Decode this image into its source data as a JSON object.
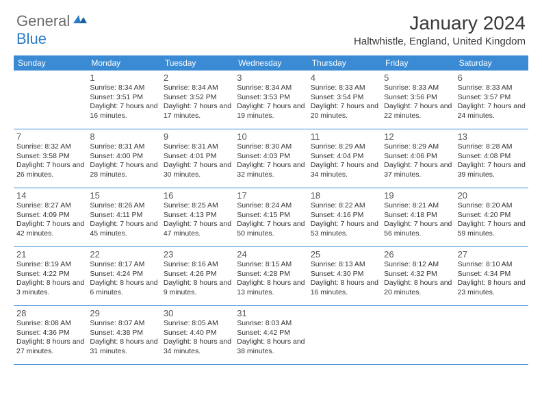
{
  "brand": {
    "part1": "General",
    "part2": "Blue"
  },
  "title": "January 2024",
  "location": "Haltwhistle, England, United Kingdom",
  "colors": {
    "header_bg": "#3b8bd4",
    "header_text": "#ffffff",
    "brand_gray": "#6b6b6b",
    "brand_blue": "#2a7cc7",
    "border": "#3b8bd4",
    "text": "#333333"
  },
  "weekdays": [
    "Sunday",
    "Monday",
    "Tuesday",
    "Wednesday",
    "Thursday",
    "Friday",
    "Saturday"
  ],
  "weeks": [
    [
      {
        "num": "",
        "sunrise": "",
        "sunset": "",
        "daylight": ""
      },
      {
        "num": "1",
        "sunrise": "Sunrise: 8:34 AM",
        "sunset": "Sunset: 3:51 PM",
        "daylight": "Daylight: 7 hours and 16 minutes."
      },
      {
        "num": "2",
        "sunrise": "Sunrise: 8:34 AM",
        "sunset": "Sunset: 3:52 PM",
        "daylight": "Daylight: 7 hours and 17 minutes."
      },
      {
        "num": "3",
        "sunrise": "Sunrise: 8:34 AM",
        "sunset": "Sunset: 3:53 PM",
        "daylight": "Daylight: 7 hours and 19 minutes."
      },
      {
        "num": "4",
        "sunrise": "Sunrise: 8:33 AM",
        "sunset": "Sunset: 3:54 PM",
        "daylight": "Daylight: 7 hours and 20 minutes."
      },
      {
        "num": "5",
        "sunrise": "Sunrise: 8:33 AM",
        "sunset": "Sunset: 3:56 PM",
        "daylight": "Daylight: 7 hours and 22 minutes."
      },
      {
        "num": "6",
        "sunrise": "Sunrise: 8:33 AM",
        "sunset": "Sunset: 3:57 PM",
        "daylight": "Daylight: 7 hours and 24 minutes."
      }
    ],
    [
      {
        "num": "7",
        "sunrise": "Sunrise: 8:32 AM",
        "sunset": "Sunset: 3:58 PM",
        "daylight": "Daylight: 7 hours and 26 minutes."
      },
      {
        "num": "8",
        "sunrise": "Sunrise: 8:31 AM",
        "sunset": "Sunset: 4:00 PM",
        "daylight": "Daylight: 7 hours and 28 minutes."
      },
      {
        "num": "9",
        "sunrise": "Sunrise: 8:31 AM",
        "sunset": "Sunset: 4:01 PM",
        "daylight": "Daylight: 7 hours and 30 minutes."
      },
      {
        "num": "10",
        "sunrise": "Sunrise: 8:30 AM",
        "sunset": "Sunset: 4:03 PM",
        "daylight": "Daylight: 7 hours and 32 minutes."
      },
      {
        "num": "11",
        "sunrise": "Sunrise: 8:29 AM",
        "sunset": "Sunset: 4:04 PM",
        "daylight": "Daylight: 7 hours and 34 minutes."
      },
      {
        "num": "12",
        "sunrise": "Sunrise: 8:29 AM",
        "sunset": "Sunset: 4:06 PM",
        "daylight": "Daylight: 7 hours and 37 minutes."
      },
      {
        "num": "13",
        "sunrise": "Sunrise: 8:28 AM",
        "sunset": "Sunset: 4:08 PM",
        "daylight": "Daylight: 7 hours and 39 minutes."
      }
    ],
    [
      {
        "num": "14",
        "sunrise": "Sunrise: 8:27 AM",
        "sunset": "Sunset: 4:09 PM",
        "daylight": "Daylight: 7 hours and 42 minutes."
      },
      {
        "num": "15",
        "sunrise": "Sunrise: 8:26 AM",
        "sunset": "Sunset: 4:11 PM",
        "daylight": "Daylight: 7 hours and 45 minutes."
      },
      {
        "num": "16",
        "sunrise": "Sunrise: 8:25 AM",
        "sunset": "Sunset: 4:13 PM",
        "daylight": "Daylight: 7 hours and 47 minutes."
      },
      {
        "num": "17",
        "sunrise": "Sunrise: 8:24 AM",
        "sunset": "Sunset: 4:15 PM",
        "daylight": "Daylight: 7 hours and 50 minutes."
      },
      {
        "num": "18",
        "sunrise": "Sunrise: 8:22 AM",
        "sunset": "Sunset: 4:16 PM",
        "daylight": "Daylight: 7 hours and 53 minutes."
      },
      {
        "num": "19",
        "sunrise": "Sunrise: 8:21 AM",
        "sunset": "Sunset: 4:18 PM",
        "daylight": "Daylight: 7 hours and 56 minutes."
      },
      {
        "num": "20",
        "sunrise": "Sunrise: 8:20 AM",
        "sunset": "Sunset: 4:20 PM",
        "daylight": "Daylight: 7 hours and 59 minutes."
      }
    ],
    [
      {
        "num": "21",
        "sunrise": "Sunrise: 8:19 AM",
        "sunset": "Sunset: 4:22 PM",
        "daylight": "Daylight: 8 hours and 3 minutes."
      },
      {
        "num": "22",
        "sunrise": "Sunrise: 8:17 AM",
        "sunset": "Sunset: 4:24 PM",
        "daylight": "Daylight: 8 hours and 6 minutes."
      },
      {
        "num": "23",
        "sunrise": "Sunrise: 8:16 AM",
        "sunset": "Sunset: 4:26 PM",
        "daylight": "Daylight: 8 hours and 9 minutes."
      },
      {
        "num": "24",
        "sunrise": "Sunrise: 8:15 AM",
        "sunset": "Sunset: 4:28 PM",
        "daylight": "Daylight: 8 hours and 13 minutes."
      },
      {
        "num": "25",
        "sunrise": "Sunrise: 8:13 AM",
        "sunset": "Sunset: 4:30 PM",
        "daylight": "Daylight: 8 hours and 16 minutes."
      },
      {
        "num": "26",
        "sunrise": "Sunrise: 8:12 AM",
        "sunset": "Sunset: 4:32 PM",
        "daylight": "Daylight: 8 hours and 20 minutes."
      },
      {
        "num": "27",
        "sunrise": "Sunrise: 8:10 AM",
        "sunset": "Sunset: 4:34 PM",
        "daylight": "Daylight: 8 hours and 23 minutes."
      }
    ],
    [
      {
        "num": "28",
        "sunrise": "Sunrise: 8:08 AM",
        "sunset": "Sunset: 4:36 PM",
        "daylight": "Daylight: 8 hours and 27 minutes."
      },
      {
        "num": "29",
        "sunrise": "Sunrise: 8:07 AM",
        "sunset": "Sunset: 4:38 PM",
        "daylight": "Daylight: 8 hours and 31 minutes."
      },
      {
        "num": "30",
        "sunrise": "Sunrise: 8:05 AM",
        "sunset": "Sunset: 4:40 PM",
        "daylight": "Daylight: 8 hours and 34 minutes."
      },
      {
        "num": "31",
        "sunrise": "Sunrise: 8:03 AM",
        "sunset": "Sunset: 4:42 PM",
        "daylight": "Daylight: 8 hours and 38 minutes."
      },
      {
        "num": "",
        "sunrise": "",
        "sunset": "",
        "daylight": ""
      },
      {
        "num": "",
        "sunrise": "",
        "sunset": "",
        "daylight": ""
      },
      {
        "num": "",
        "sunrise": "",
        "sunset": "",
        "daylight": ""
      }
    ]
  ]
}
